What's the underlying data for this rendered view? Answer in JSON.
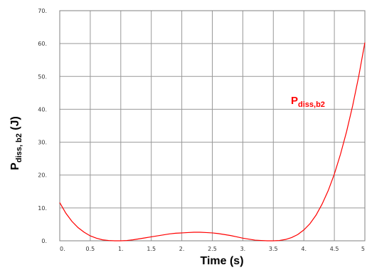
{
  "chart_data": {
    "type": "line",
    "xlabel": "Time (s)",
    "ylabel": {
      "main": "P",
      "sub": "diss, b2",
      "unit": " (J)"
    },
    "annotation": {
      "main": "P",
      "sub": "diss,b2"
    },
    "xlim": [
      0,
      5
    ],
    "ylim": [
      0,
      70
    ],
    "x_ticks": [
      {
        "v": 0,
        "label": "0."
      },
      {
        "v": 0.5,
        "label": "0.5"
      },
      {
        "v": 1,
        "label": "1."
      },
      {
        "v": 1.5,
        "label": "1.5"
      },
      {
        "v": 2,
        "label": "2."
      },
      {
        "v": 2.5,
        "label": "2.5"
      },
      {
        "v": 3,
        "label": "3."
      },
      {
        "v": 3.5,
        "label": "3.5"
      },
      {
        "v": 4,
        "label": "4."
      },
      {
        "v": 4.5,
        "label": "4.5"
      },
      {
        "v": 5,
        "label": "5"
      }
    ],
    "y_ticks": [
      {
        "v": 0,
        "label": "0."
      },
      {
        "v": 10,
        "label": "10."
      },
      {
        "v": 20,
        "label": "20."
      },
      {
        "v": 30,
        "label": "30."
      },
      {
        "v": 40,
        "label": "40."
      },
      {
        "v": 50,
        "label": "50."
      },
      {
        "v": 60,
        "label": "60."
      },
      {
        "v": 70,
        "label": "70."
      }
    ],
    "grid": true,
    "series": [
      {
        "color": "#ff0000",
        "x": [
          0,
          0.1,
          0.2,
          0.3,
          0.4,
          0.5,
          0.6,
          0.7,
          0.8,
          0.9,
          1.0,
          1.1,
          1.2,
          1.3,
          1.4,
          1.5,
          1.6,
          1.7,
          1.8,
          1.9,
          2.0,
          2.1,
          2.2,
          2.3,
          2.4,
          2.5,
          2.6,
          2.7,
          2.8,
          2.9,
          3.0,
          3.1,
          3.2,
          3.3,
          3.4,
          3.5,
          3.6,
          3.7,
          3.8,
          3.9,
          4.0,
          4.1,
          4.2,
          4.3,
          4.4,
          4.5,
          4.6,
          4.7,
          4.8,
          4.9,
          5.0
        ],
        "y": [
          11.6,
          8.4,
          5.9,
          4.0,
          2.6,
          1.5,
          0.8,
          0.3,
          0.1,
          0.0,
          0.0,
          0.1,
          0.3,
          0.6,
          0.9,
          1.2,
          1.5,
          1.8,
          2.1,
          2.3,
          2.4,
          2.5,
          2.6,
          2.6,
          2.5,
          2.4,
          2.2,
          1.9,
          1.6,
          1.2,
          0.8,
          0.5,
          0.2,
          0.1,
          0.0,
          0.0,
          0.1,
          0.4,
          1.0,
          1.9,
          3.3,
          5.2,
          7.8,
          11.2,
          15.3,
          20.3,
          26.3,
          33.2,
          41.1,
          50.1,
          60.3
        ]
      }
    ]
  }
}
